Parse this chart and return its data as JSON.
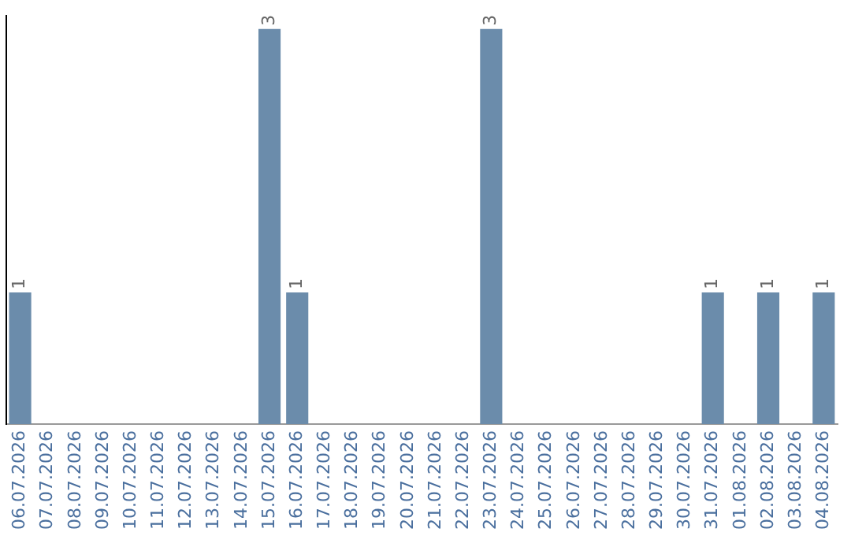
{
  "chart_data": {
    "type": "bar",
    "categories": [
      "06.07.2026",
      "07.07.2026",
      "08.07.2026",
      "09.07.2026",
      "10.07.2026",
      "11.07.2026",
      "12.07.2026",
      "13.07.2026",
      "14.07.2026",
      "15.07.2026",
      "16.07.2026",
      "17.07.2026",
      "18.07.2026",
      "19.07.2026",
      "20.07.2026",
      "21.07.2026",
      "22.07.2026",
      "23.07.2026",
      "24.07.2026",
      "25.07.2026",
      "26.07.2026",
      "27.07.2026",
      "28.07.2026",
      "29.07.2026",
      "30.07.2026",
      "31.07.2026",
      "01.08.2026",
      "02.08.2026",
      "03.08.2026",
      "04.08.2026"
    ],
    "values": [
      1,
      0,
      0,
      0,
      0,
      0,
      0,
      0,
      0,
      3,
      1,
      0,
      0,
      0,
      0,
      0,
      0,
      3,
      0,
      0,
      0,
      0,
      0,
      0,
      0,
      1,
      0,
      1,
      0,
      1
    ],
    "value_labels": [
      "1",
      null,
      null,
      null,
      null,
      null,
      null,
      null,
      null,
      "3",
      "1",
      null,
      null,
      null,
      null,
      null,
      null,
      "3",
      null,
      null,
      null,
      null,
      null,
      null,
      null,
      "1",
      null,
      "1",
      null,
      "1"
    ],
    "color": "#6b8cab",
    "ylim": [
      0,
      3.1
    ],
    "tick_labels": "x",
    "grid": false,
    "legend": false
  }
}
